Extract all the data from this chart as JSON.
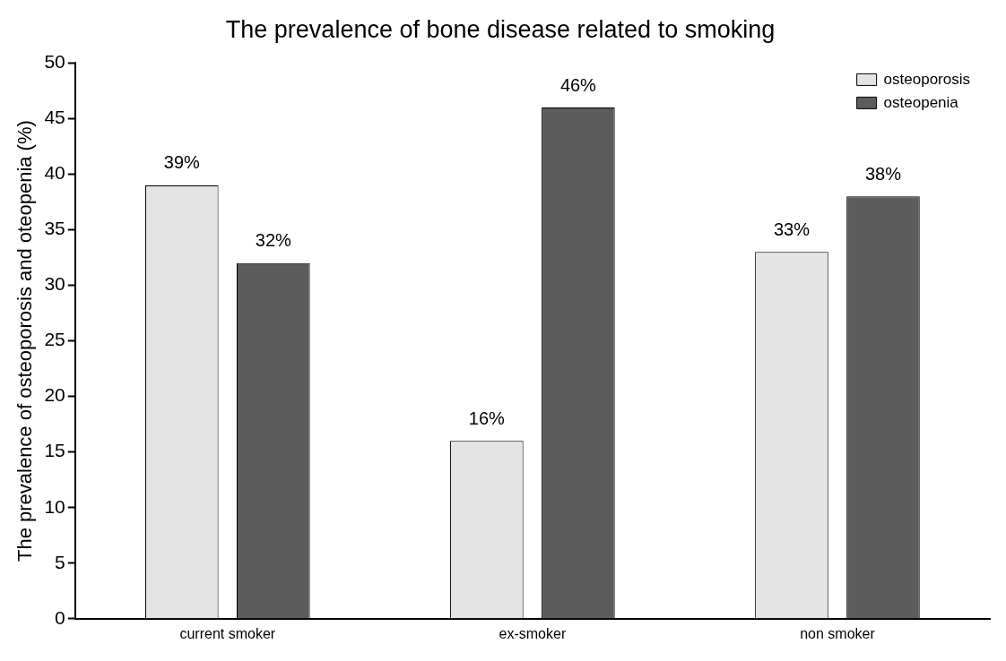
{
  "chart_data": {
    "type": "bar",
    "title": "The prevalence of bone disease related to smoking",
    "ylabel": "The prevalence of osteoporosis and oteopenia (%)",
    "categories": [
      "current smoker",
      "ex-smoker",
      "non smoker"
    ],
    "series": [
      {
        "name": "osteoporosis",
        "color": "#e4e4e4",
        "values": [
          39,
          16,
          33
        ],
        "value_labels": [
          "39%",
          "16%",
          "33%"
        ]
      },
      {
        "name": "osteopenia",
        "color": "#5c5c5c",
        "values": [
          32,
          46,
          38
        ],
        "value_labels": [
          "32%",
          "46%",
          "38%"
        ]
      }
    ],
    "ylim": [
      0,
      50
    ],
    "yticks": [
      0,
      5,
      10,
      15,
      20,
      25,
      30,
      35,
      40,
      45,
      50
    ],
    "grid": false,
    "legend": "top right"
  }
}
